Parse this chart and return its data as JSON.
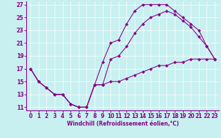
{
  "bg_color": "#c8f0f0",
  "line_color": "#880088",
  "grid_color": "#ffffff",
  "xlim": [
    -0.5,
    23.5
  ],
  "ylim": [
    10.5,
    27.5
  ],
  "xticks": [
    0,
    1,
    2,
    3,
    4,
    5,
    6,
    7,
    8,
    9,
    10,
    11,
    12,
    13,
    14,
    15,
    16,
    17,
    18,
    19,
    20,
    21,
    22,
    23
  ],
  "yticks": [
    11,
    13,
    15,
    17,
    19,
    21,
    23,
    25,
    27
  ],
  "xlabel": "Windchill (Refroidissement éolien,°C)",
  "curve1_x": [
    0,
    1,
    2,
    3,
    4,
    5,
    6,
    7,
    8,
    9,
    10,
    11,
    12,
    13,
    14,
    15,
    16,
    17,
    18,
    19,
    20,
    21,
    22,
    23
  ],
  "curve1_y": [
    17.0,
    15.0,
    14.0,
    13.0,
    13.0,
    11.5,
    11.0,
    11.0,
    14.5,
    18.0,
    21.0,
    21.5,
    24.0,
    26.0,
    27.0,
    27.0,
    27.0,
    27.0,
    26.0,
    25.0,
    24.0,
    23.0,
    20.5,
    18.5
  ],
  "curve2_x": [
    0,
    1,
    2,
    3,
    4,
    5,
    6,
    7,
    8,
    9,
    10,
    11,
    12,
    13,
    14,
    15,
    16,
    17,
    18,
    19,
    20,
    21,
    22,
    23
  ],
  "curve2_y": [
    17.0,
    15.0,
    14.0,
    13.0,
    13.0,
    11.5,
    11.0,
    11.0,
    14.5,
    14.5,
    18.5,
    19.0,
    20.5,
    22.5,
    24.0,
    25.0,
    25.5,
    26.0,
    25.5,
    24.5,
    23.5,
    22.0,
    20.5,
    18.5
  ],
  "curve3_x": [
    0,
    1,
    2,
    3,
    4,
    5,
    6,
    7,
    8,
    9,
    10,
    11,
    12,
    13,
    14,
    15,
    16,
    17,
    18,
    19,
    20,
    21,
    22,
    23
  ],
  "curve3_y": [
    17.0,
    15.0,
    14.0,
    13.0,
    13.0,
    11.5,
    11.0,
    11.0,
    14.5,
    14.5,
    15.0,
    15.0,
    15.5,
    16.0,
    16.5,
    17.0,
    17.5,
    17.5,
    18.0,
    18.0,
    18.5,
    18.5,
    18.5,
    18.5
  ],
  "tick_fontsize": 5.5,
  "xlabel_fontsize": 5.5
}
